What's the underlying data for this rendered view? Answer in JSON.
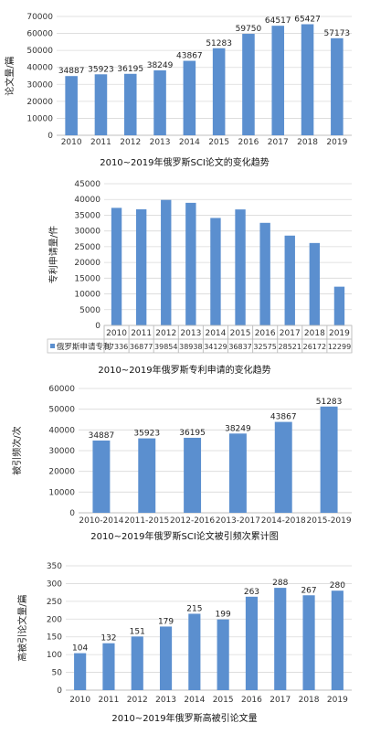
{
  "chart_data": [
    {
      "type": "bar",
      "title": "2010~2019年俄罗斯SCI论文的变化趋势",
      "ylabel": "论文量/篇",
      "xlabel": "",
      "categories": [
        "2010",
        "2011",
        "2012",
        "2013",
        "2014",
        "2015",
        "2016",
        "2017",
        "2018",
        "2019"
      ],
      "values": [
        34887,
        35923,
        36195,
        38249,
        43867,
        51283,
        59750,
        64517,
        65427,
        57173
      ],
      "ylim": [
        0,
        70000
      ],
      "yticks": [
        "0",
        "10000",
        "20000",
        "30000",
        "40000",
        "50000",
        "60000",
        "70000"
      ],
      "color": "#5b8fcf",
      "grid": true
    },
    {
      "type": "bar",
      "title": "2010~2019年俄罗斯专利申请的变化趋势",
      "ylabel": "专利申请量/件",
      "xlabel": "",
      "categories": [
        "2010",
        "2011",
        "2012",
        "2013",
        "2014",
        "2015",
        "2016",
        "2017",
        "2018",
        "2019"
      ],
      "series": [
        {
          "name": "俄罗斯申请专利",
          "values": [
            37336,
            36877,
            39854,
            38938,
            34129,
            36837,
            32575,
            28521,
            26172,
            12299
          ]
        }
      ],
      "ylim": [
        0,
        45000
      ],
      "yticks": [
        "0",
        "5000",
        "10000",
        "15000",
        "20000",
        "25000",
        "30000",
        "35000",
        "40000",
        "45000"
      ],
      "color": "#5b8fcf",
      "grid": true,
      "data_table": true
    },
    {
      "type": "bar",
      "title": "2010~2019年俄罗斯SCI论文被引频次累计图",
      "ylabel": "被引频次/次",
      "xlabel": "",
      "categories": [
        "2010-2014",
        "2011-2015",
        "2012-2016",
        "2013-2017",
        "2014-2018",
        "2015-2019"
      ],
      "values": [
        34887,
        35923,
        36195,
        38249,
        43867,
        51283
      ],
      "ylim": [
        0,
        60000
      ],
      "yticks": [
        "0",
        "10000",
        "20000",
        "30000",
        "40000",
        "50000",
        "60000"
      ],
      "color": "#5b8fcf",
      "grid": true
    },
    {
      "type": "bar",
      "title": "2010~2019年俄罗斯高被引论文量",
      "ylabel": "高被引论文量/篇",
      "xlabel": "",
      "categories": [
        "2010",
        "2011",
        "2012",
        "2013",
        "2014",
        "2015",
        "2016",
        "2017",
        "2018",
        "2019"
      ],
      "values": [
        104,
        132,
        151,
        179,
        215,
        199,
        263,
        288,
        267,
        280
      ],
      "ylim": [
        0,
        350
      ],
      "yticks": [
        "0",
        "50",
        "100",
        "150",
        "200",
        "250",
        "300",
        "350"
      ],
      "color": "#5b8fcf",
      "grid": true
    }
  ]
}
